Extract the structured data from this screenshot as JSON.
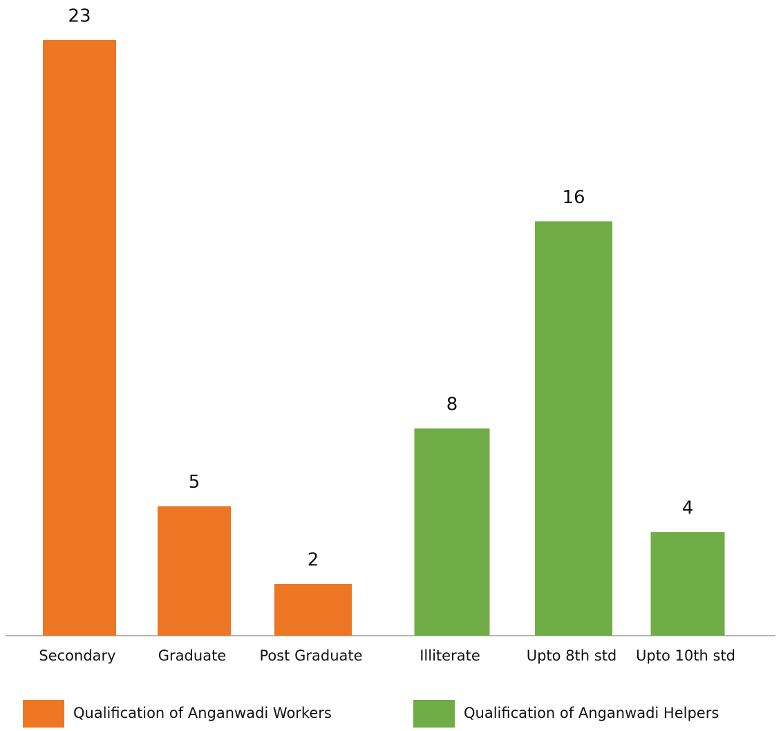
{
  "chart_data": {
    "type": "bar",
    "categories": [
      "Secondary",
      "Graduate",
      "Post Graduate",
      "Illiterate",
      "Upto 8th std",
      "Upto 10th std"
    ],
    "series": [
      {
        "name": "Qualification of Anganwadi Workers",
        "color": "#ed7625",
        "values": [
          23,
          5,
          2,
          null,
          null,
          null
        ]
      },
      {
        "name": "Qualification of Anganwadi Helpers",
        "color": "#70ad47",
        "values": [
          null,
          null,
          null,
          8,
          16,
          4
        ]
      }
    ],
    "legend": "bottom"
  }
}
